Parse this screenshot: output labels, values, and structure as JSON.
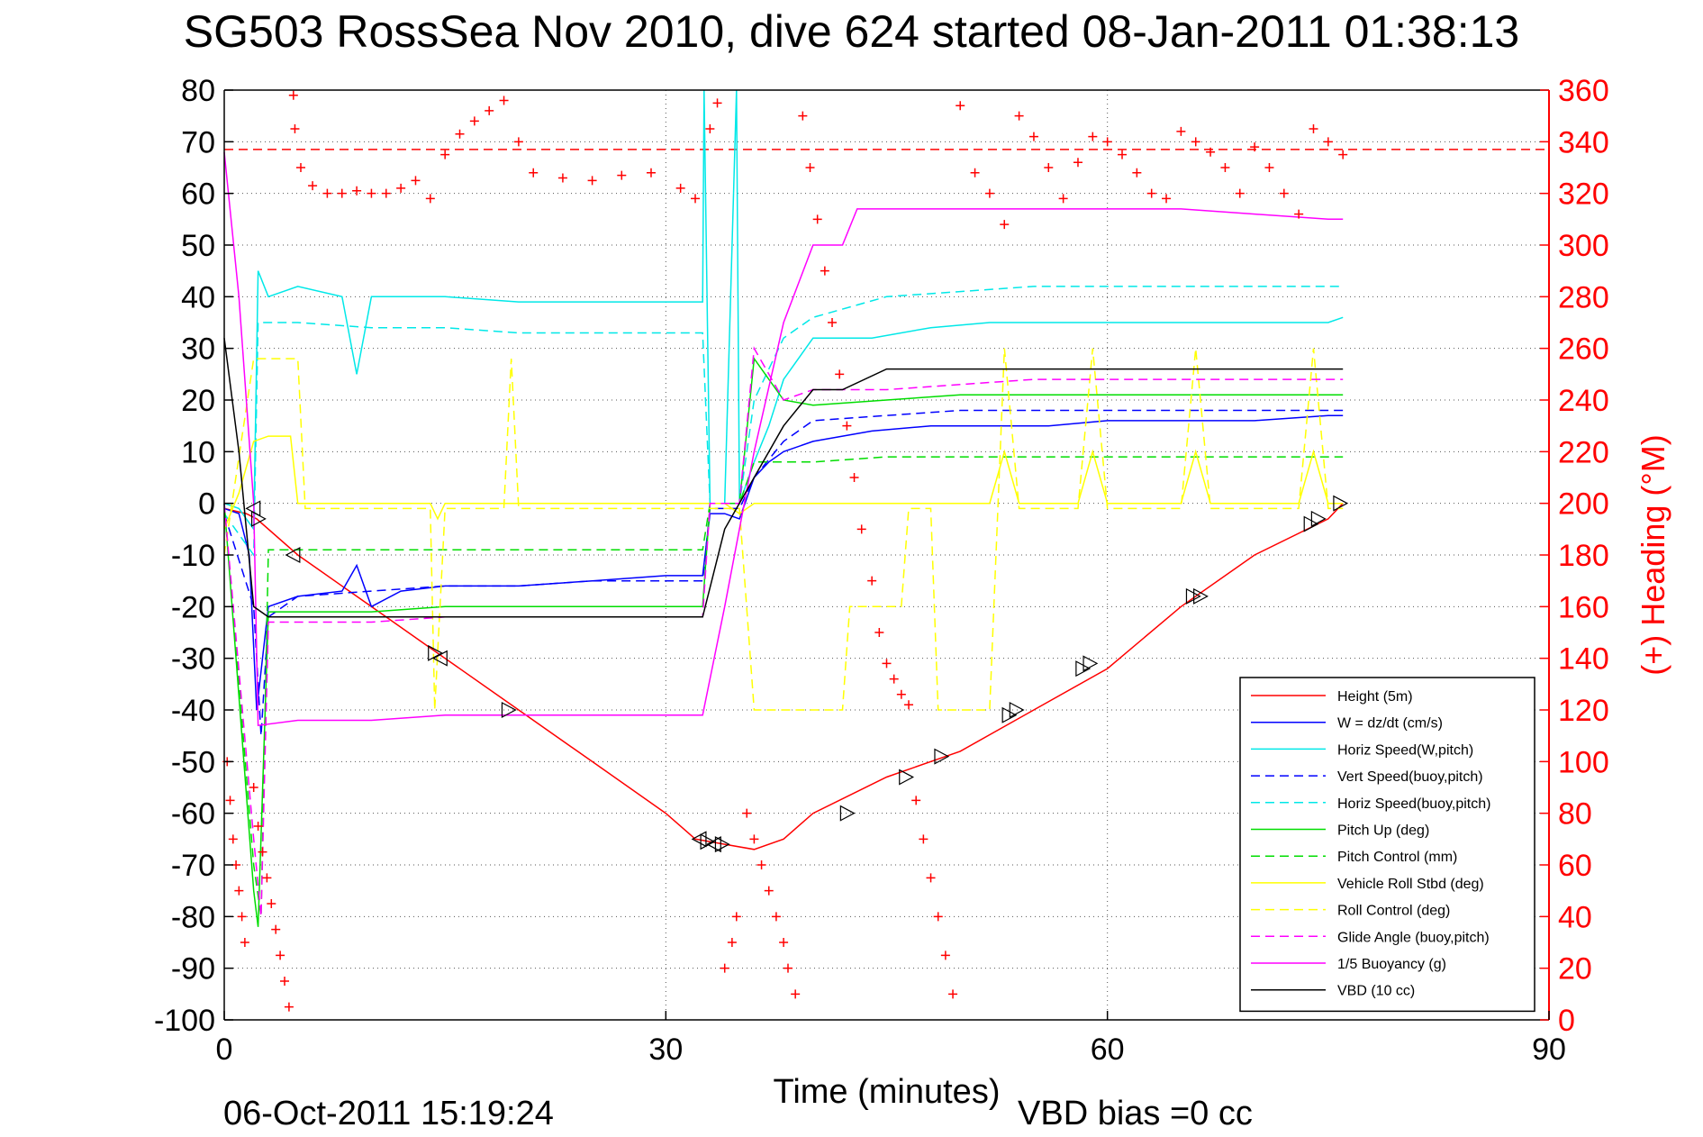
{
  "chart_data": {
    "type": "line",
    "title": "SG503 RossSea Nov 2010, dive 624 started 08-Jan-2011 01:38:13",
    "xlabel": "Time (minutes)",
    "ylabel": "",
    "y2label": "(+) Heading (°M)",
    "xlim": [
      0,
      90
    ],
    "ylim": [
      -100,
      80
    ],
    "y2lim": [
      0,
      360
    ],
    "xticks": [
      0,
      30,
      60,
      90
    ],
    "yticks": [
      -100,
      -90,
      -80,
      -70,
      -60,
      -50,
      -40,
      -30,
      -20,
      -10,
      0,
      10,
      20,
      30,
      40,
      50,
      60,
      70,
      80
    ],
    "y2ticks": [
      0,
      20,
      40,
      60,
      80,
      100,
      120,
      140,
      160,
      180,
      200,
      220,
      240,
      260,
      280,
      300,
      320,
      340,
      360
    ],
    "grid": true,
    "legend_position": "bottom-right",
    "heading_reference": 337,
    "series": [
      {
        "name": "Height (5m)",
        "color": "#ff0000",
        "style": "solid",
        "x": [
          0,
          1.5,
          2.2,
          5,
          10,
          15,
          20,
          25,
          30,
          32,
          34,
          36,
          38,
          40,
          45,
          50,
          55,
          60,
          65,
          70,
          75,
          76
        ],
        "y": [
          -1,
          -2,
          -3,
          -10,
          -20,
          -30,
          -40,
          -50,
          -60,
          -65,
          -66,
          -67,
          -65,
          -60,
          -53,
          -48,
          -40,
          -32,
          -20,
          -10,
          -3,
          0
        ]
      },
      {
        "name": "W = dz/dt (cm/s)",
        "color": "#0000ff",
        "style": "solid",
        "x": [
          0,
          1,
          1.7,
          2.2,
          3,
          5,
          8,
          9,
          10,
          12,
          15,
          20,
          25,
          30,
          32.5,
          33,
          34,
          35,
          36,
          37,
          38,
          40,
          44,
          48,
          52,
          56,
          60,
          65,
          70,
          75,
          76
        ],
        "y": [
          -1,
          -2,
          -10,
          -40,
          -20,
          -18,
          -17,
          -12,
          -20,
          -17,
          -16,
          -16,
          -15,
          -14,
          -14,
          -2,
          -2,
          -3,
          5,
          8,
          10,
          12,
          14,
          15,
          15,
          15,
          16,
          16,
          16,
          17,
          17
        ]
      },
      {
        "name": "Horiz Speed(W,pitch)",
        "color": "#00e8e8",
        "style": "solid",
        "x": [
          0,
          1,
          2,
          2.3,
          3,
          5,
          8,
          9,
          10,
          12,
          15,
          20,
          25,
          30,
          32.5,
          32.6,
          33,
          34,
          34.8,
          35,
          36,
          37,
          38,
          40,
          44,
          48,
          52,
          56,
          60,
          65,
          70,
          75,
          76
        ],
        "y": [
          0,
          -1,
          -5,
          45,
          40,
          42,
          40,
          25,
          40,
          40,
          40,
          39,
          39,
          39,
          39,
          80,
          0,
          0,
          80,
          0,
          8,
          15,
          24,
          32,
          32,
          34,
          35,
          35,
          35,
          35,
          35,
          35,
          36
        ]
      },
      {
        "name": "Vert Speed(buoy,pitch)",
        "color": "#0000ff",
        "style": "dashed",
        "x": [
          0,
          2,
          2.5,
          3,
          5,
          10,
          15,
          20,
          25,
          30,
          32.5,
          33,
          35,
          36,
          38,
          40,
          45,
          50,
          55,
          60,
          65,
          70,
          75,
          76
        ],
        "y": [
          -2,
          -20,
          -45,
          -22,
          -18,
          -17,
          -16,
          -16,
          -15,
          -15,
          -15,
          -1,
          -1,
          5,
          12,
          16,
          17,
          18,
          18,
          18,
          18,
          18,
          18,
          18
        ]
      },
      {
        "name": "Horiz Speed(buoy,pitch)",
        "color": "#00e8e8",
        "style": "dashed",
        "x": [
          0,
          2,
          2.3,
          3,
          5,
          10,
          15,
          20,
          25,
          30,
          32.5,
          33,
          35,
          36,
          38,
          40,
          45,
          50,
          55,
          60,
          65,
          70,
          75,
          76
        ],
        "y": [
          -2,
          -10,
          35,
          35,
          35,
          34,
          34,
          33,
          33,
          33,
          33,
          0,
          0,
          20,
          32,
          36,
          40,
          41,
          42,
          42,
          42,
          42,
          42,
          42
        ]
      },
      {
        "name": "Pitch Up (deg)",
        "color": "#00dd00",
        "style": "solid",
        "x": [
          0,
          2,
          2.3,
          3,
          5,
          10,
          15,
          20,
          25,
          30,
          32.5,
          33,
          35,
          36,
          38,
          40,
          45,
          50,
          55,
          60,
          65,
          70,
          75,
          76
        ],
        "y": [
          0,
          -75,
          -82,
          -21,
          -21,
          -21,
          -20,
          -20,
          -20,
          -20,
          -20,
          0,
          0,
          28,
          20,
          19,
          20,
          21,
          21,
          21,
          21,
          21,
          21,
          21
        ]
      },
      {
        "name": "Pitch Control (mm)",
        "color": "#00dd00",
        "style": "dashed",
        "x": [
          0,
          2,
          2.5,
          3,
          5,
          10,
          15,
          20,
          25,
          30,
          32.5,
          33,
          35,
          36,
          40,
          45,
          50,
          55,
          60,
          65,
          70,
          75,
          76
        ],
        "y": [
          0,
          -70,
          -80,
          -9,
          -9,
          -9,
          -9,
          -9,
          -9,
          -9,
          -9,
          0,
          0,
          8,
          8,
          9,
          9,
          9,
          9,
          9,
          9,
          9,
          9
        ]
      },
      {
        "name": "Vehicle Roll Stbd (deg)",
        "color": "#ffff00",
        "style": "solid",
        "x": [
          0,
          1,
          2,
          3,
          4.5,
          5,
          6,
          10,
          14,
          14.5,
          15,
          20,
          25,
          30,
          32,
          34,
          35,
          36,
          40,
          44,
          45,
          50,
          52,
          53,
          54,
          55,
          58,
          59,
          60,
          65,
          66,
          67,
          70,
          73,
          74,
          75,
          76
        ],
        "y": [
          -5,
          2,
          12,
          13,
          13,
          0,
          0,
          0,
          0,
          -3,
          0,
          0,
          0,
          0,
          0,
          0,
          -2,
          0,
          0,
          0,
          0,
          0,
          0,
          10,
          0,
          0,
          0,
          10,
          0,
          0,
          10,
          0,
          0,
          0,
          10,
          0,
          0
        ]
      },
      {
        "name": "Roll Control (deg)",
        "color": "#ffff00",
        "style": "dashed",
        "x": [
          0,
          2,
          2.5,
          5,
          5.5,
          14,
          14.3,
          15,
          19,
          19.5,
          20,
          25,
          30,
          34,
          35,
          36,
          42,
          42.5,
          46,
          46.5,
          48,
          48.5,
          52,
          53,
          54,
          58,
          59,
          60,
          65,
          66,
          67,
          73,
          74,
          75,
          76
        ],
        "y": [
          -10,
          28,
          28,
          28,
          -1,
          -1,
          -40,
          -1,
          -1,
          28,
          -1,
          -1,
          -1,
          -1,
          -1,
          -40,
          -40,
          -20,
          -20,
          -1,
          -1,
          -40,
          -40,
          30,
          -1,
          -1,
          30,
          -1,
          -1,
          30,
          -1,
          -1,
          30,
          -1,
          -1
        ]
      },
      {
        "name": "Glide Angle (buoy,pitch)",
        "color": "#ff00ff",
        "style": "dashed",
        "x": [
          0,
          2,
          2.5,
          3,
          5,
          10,
          15,
          20,
          25,
          30,
          32.5,
          33,
          35,
          36,
          38,
          40,
          45,
          50,
          55,
          60,
          65,
          70,
          75,
          76
        ],
        "y": [
          0,
          -65,
          -80,
          -23,
          -23,
          -23,
          -22,
          -22,
          -22,
          -22,
          -22,
          0,
          0,
          30,
          20,
          22,
          22,
          23,
          24,
          24,
          24,
          24,
          24,
          24
        ]
      },
      {
        "name": "1/5 Buoyancy (g)",
        "color": "#ff00ff",
        "style": "solid",
        "x": [
          0,
          1,
          2,
          2.3,
          5,
          10,
          15,
          20,
          25,
          30,
          32.5,
          34,
          36,
          38,
          40,
          42,
          43,
          45,
          50,
          55,
          60,
          65,
          70,
          75,
          76
        ],
        "y": [
          68,
          40,
          0,
          -43,
          -42,
          -42,
          -41,
          -41,
          -41,
          -41,
          -41,
          -20,
          10,
          35,
          50,
          50,
          57,
          57,
          57,
          57,
          57,
          57,
          56,
          55,
          55
        ]
      },
      {
        "name": "VBD (10 cc)",
        "color": "#000000",
        "style": "solid",
        "x": [
          0,
          1,
          2,
          3,
          5,
          10,
          15,
          20,
          25,
          30,
          32.5,
          34,
          36,
          38,
          40,
          42,
          45,
          50,
          55,
          60,
          65,
          70,
          75,
          76
        ],
        "y": [
          32,
          10,
          -20,
          -22,
          -22,
          -22,
          -22,
          -22,
          -22,
          -22,
          -22,
          -5,
          5,
          15,
          22,
          22,
          26,
          26,
          26,
          26,
          26,
          26,
          26,
          26
        ]
      }
    ],
    "heading_points": {
      "name": "(+) Heading (°M)",
      "color": "#ff0000",
      "marker": "+",
      "x": [
        0.2,
        0.4,
        0.6,
        0.8,
        1.0,
        1.2,
        1.4,
        2.0,
        2.3,
        2.6,
        2.9,
        3.2,
        3.5,
        3.8,
        4.1,
        4.4,
        4.7,
        4.8,
        5.2,
        6,
        7,
        8,
        9,
        10,
        11,
        12,
        13,
        14,
        15,
        16,
        17,
        18,
        19,
        20,
        21,
        23,
        25,
        27,
        29,
        31,
        32,
        33,
        33.5,
        34,
        34.5,
        34.8,
        35.5,
        36,
        36.5,
        37,
        37.5,
        38,
        38.3,
        38.8,
        39.3,
        39.8,
        40.3,
        40.8,
        41.3,
        41.8,
        42.3,
        42.8,
        43.3,
        44,
        44.5,
        45,
        45.5,
        46,
        46.5,
        47,
        47.5,
        48,
        48.5,
        49,
        49.5,
        50,
        51,
        52,
        53,
        54,
        55,
        56,
        57,
        58,
        59,
        60,
        61,
        62,
        63,
        64,
        65,
        66,
        67,
        68,
        69,
        70,
        71,
        72,
        73,
        74,
        75,
        76
      ],
      "y": [
        100,
        85,
        70,
        60,
        50,
        40,
        30,
        90,
        75,
        65,
        55,
        45,
        35,
        25,
        15,
        5,
        358,
        345,
        330,
        323,
        320,
        320,
        321,
        320,
        320,
        322,
        325,
        318,
        335,
        343,
        348,
        352,
        356,
        340,
        328,
        326,
        325,
        327,
        328,
        322,
        318,
        345,
        355,
        20,
        30,
        40,
        80,
        70,
        60,
        50,
        40,
        30,
        20,
        10,
        350,
        330,
        310,
        290,
        270,
        250,
        230,
        210,
        190,
        170,
        150,
        138,
        132,
        126,
        122,
        85,
        70,
        55,
        40,
        25,
        10,
        354,
        328,
        320,
        308,
        350,
        342,
        330,
        318,
        332,
        342,
        340,
        335,
        328,
        320,
        318,
        344,
        340,
        336,
        330,
        320,
        338,
        330,
        320,
        312,
        345,
        340,
        335
      ]
    },
    "direction_markers": {
      "name": "direction",
      "color": "#000000",
      "x": [
        2,
        2.3,
        4.7,
        14.3,
        14.7,
        19.3,
        32.3,
        32.8,
        33.3,
        33.8,
        42.3,
        46.3,
        48.7,
        53.3,
        53.8,
        58.3,
        58.8,
        65.8,
        66.3,
        73.8,
        74.3,
        75.8
      ],
      "y": [
        -1,
        -3,
        -10,
        -29,
        -30,
        -40,
        -65,
        -65.5,
        -66,
        -66,
        -60,
        -53,
        -49,
        -41,
        -40,
        -32,
        -31,
        -18,
        -18,
        -4,
        -3,
        0
      ]
    }
  },
  "footer": {
    "timestamp": "06-Oct-2011 15:19:24",
    "vbd_bias": "VBD bias =0 cc"
  }
}
